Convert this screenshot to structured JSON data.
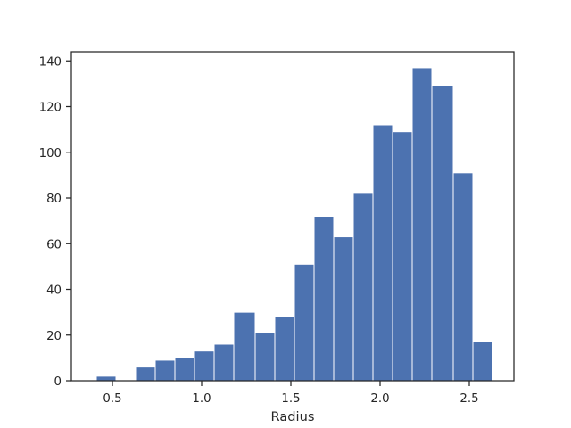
{
  "chart_data": {
    "type": "bar",
    "subtype": "histogram",
    "title": "",
    "xlabel": "Radius",
    "ylabel": "",
    "xlim": [
      0.27,
      2.75
    ],
    "ylim": [
      0,
      144
    ],
    "bins": [
      {
        "x0": 0.41,
        "x1": 0.52,
        "count": 2
      },
      {
        "x0": 0.52,
        "x1": 0.63,
        "count": 0
      },
      {
        "x0": 0.63,
        "x1": 0.74,
        "count": 6
      },
      {
        "x0": 0.74,
        "x1": 0.85,
        "count": 9
      },
      {
        "x0": 0.85,
        "x1": 0.96,
        "count": 10
      },
      {
        "x0": 0.96,
        "x1": 1.07,
        "count": 13
      },
      {
        "x0": 1.07,
        "x1": 1.18,
        "count": 16
      },
      {
        "x0": 1.18,
        "x1": 1.3,
        "count": 30
      },
      {
        "x0": 1.3,
        "x1": 1.41,
        "count": 21
      },
      {
        "x0": 1.41,
        "x1": 1.52,
        "count": 28
      },
      {
        "x0": 1.52,
        "x1": 1.63,
        "count": 51
      },
      {
        "x0": 1.63,
        "x1": 1.74,
        "count": 72
      },
      {
        "x0": 1.74,
        "x1": 1.85,
        "count": 63
      },
      {
        "x0": 1.85,
        "x1": 1.96,
        "count": 82
      },
      {
        "x0": 1.96,
        "x1": 2.07,
        "count": 112
      },
      {
        "x0": 2.07,
        "x1": 2.18,
        "count": 109
      },
      {
        "x0": 2.18,
        "x1": 2.29,
        "count": 137
      },
      {
        "x0": 2.29,
        "x1": 2.41,
        "count": 129
      },
      {
        "x0": 2.41,
        "x1": 2.52,
        "count": 91
      },
      {
        "x0": 2.52,
        "x1": 2.63,
        "count": 17
      }
    ],
    "x_ticks": [
      0.5,
      1.0,
      1.5,
      2.0,
      2.5
    ],
    "x_tick_labels": [
      "0.5",
      "1.0",
      "1.5",
      "2.0",
      "2.5"
    ],
    "y_ticks": [
      0,
      20,
      40,
      60,
      80,
      100,
      120,
      140
    ],
    "y_tick_labels": [
      "0",
      "20",
      "40",
      "60",
      "80",
      "100",
      "120",
      "140"
    ],
    "bar_color": "#4c72b0",
    "edge_color": "#ffffff",
    "grid": false,
    "legend": "none"
  }
}
